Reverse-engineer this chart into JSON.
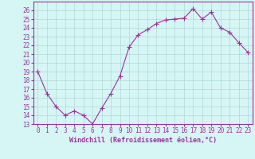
{
  "x": [
    0,
    1,
    2,
    3,
    4,
    5,
    6,
    7,
    8,
    9,
    10,
    11,
    12,
    13,
    14,
    15,
    16,
    17,
    18,
    19,
    20,
    21,
    22,
    23
  ],
  "y": [
    19,
    16.5,
    15,
    14,
    14.5,
    14,
    13,
    14.8,
    16.5,
    18.5,
    21.8,
    23.2,
    23.8,
    24.5,
    24.9,
    25,
    25.1,
    26.2,
    25,
    25.8,
    24,
    23.5,
    22.3,
    21.2
  ],
  "line_color": "#993399",
  "marker": "+",
  "bg_color": "#d6f5f5",
  "grid_color": "#b0d8d8",
  "xlabel": "Windchill (Refroidissement éolien,°C)",
  "ylim": [
    13,
    27
  ],
  "xlim": [
    -0.5,
    23.5
  ],
  "yticks": [
    13,
    14,
    15,
    16,
    17,
    18,
    19,
    20,
    21,
    22,
    23,
    24,
    25,
    26
  ],
  "xticks": [
    0,
    1,
    2,
    3,
    4,
    5,
    6,
    7,
    8,
    9,
    10,
    11,
    12,
    13,
    14,
    15,
    16,
    17,
    18,
    19,
    20,
    21,
    22,
    23
  ],
  "tick_fontsize": 5.5,
  "xlabel_fontsize": 6,
  "line_width": 0.8,
  "marker_size": 4
}
